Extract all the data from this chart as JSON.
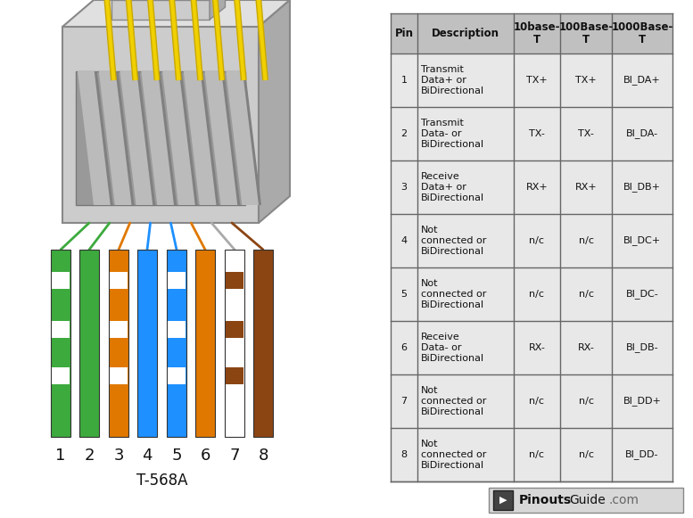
{
  "bg_color": "#ffffff",
  "subtitle": "T-568A",
  "table_bg_header": "#c0c0c0",
  "table_bg_row": "#e8e8e8",
  "table_border": "#666666",
  "wire_defs": [
    {
      "primary": "#3daa3d",
      "stripe": "#ffffff",
      "line": "#3daa3d"
    },
    {
      "primary": "#3daa3d",
      "stripe": null,
      "line": "#3daa3d"
    },
    {
      "primary": "#e07800",
      "stripe": "#ffffff",
      "line": "#e07800"
    },
    {
      "primary": "#1e90ff",
      "stripe": null,
      "line": "#1e90ff"
    },
    {
      "primary": "#1e90ff",
      "stripe": "#ffffff",
      "line": "#1e90ff"
    },
    {
      "primary": "#e07800",
      "stripe": null,
      "line": "#e07800"
    },
    {
      "primary": "#ffffff",
      "stripe": "#8b4513",
      "line": "#aaaaaa"
    },
    {
      "primary": "#8b4513",
      "stripe": null,
      "line": "#8b4513"
    }
  ],
  "table_data": [
    {
      "pin": "1",
      "desc": "Transmit\nData+ or\nBiDirectional",
      "t10": "TX+",
      "t100": "TX+",
      "t1000": "BI_DA+"
    },
    {
      "pin": "2",
      "desc": "Transmit\nData- or\nBiDirectional",
      "t10": "TX-",
      "t100": "TX-",
      "t1000": "BI_DA-"
    },
    {
      "pin": "3",
      "desc": "Receive\nData+ or\nBiDirectional",
      "t10": "RX+",
      "t100": "RX+",
      "t1000": "BI_DB+"
    },
    {
      "pin": "4",
      "desc": "Not\nconnected or\nBiDirectional",
      "t10": "n/c",
      "t100": "n/c",
      "t1000": "BI_DC+"
    },
    {
      "pin": "5",
      "desc": "Not\nconnected or\nBiDirectional",
      "t10": "n/c",
      "t100": "n/c",
      "t1000": "BI_DC-"
    },
    {
      "pin": "6",
      "desc": "Receive\nData- or\nBiDirectional",
      "t10": "RX-",
      "t100": "RX-",
      "t1000": "BI_DB-"
    },
    {
      "pin": "7",
      "desc": "Not\nconnected or\nBiDirectional",
      "t10": "n/c",
      "t100": "n/c",
      "t1000": "BI_DD+"
    },
    {
      "pin": "8",
      "desc": "Not\nconnected or\nBiDirectional",
      "t10": "n/c",
      "t100": "n/c",
      "t1000": "BI_DD-"
    }
  ],
  "col_headers": [
    "Pin",
    "Description",
    "10base-\nT",
    "100Base-\nT",
    "1000Base-\nT"
  ]
}
